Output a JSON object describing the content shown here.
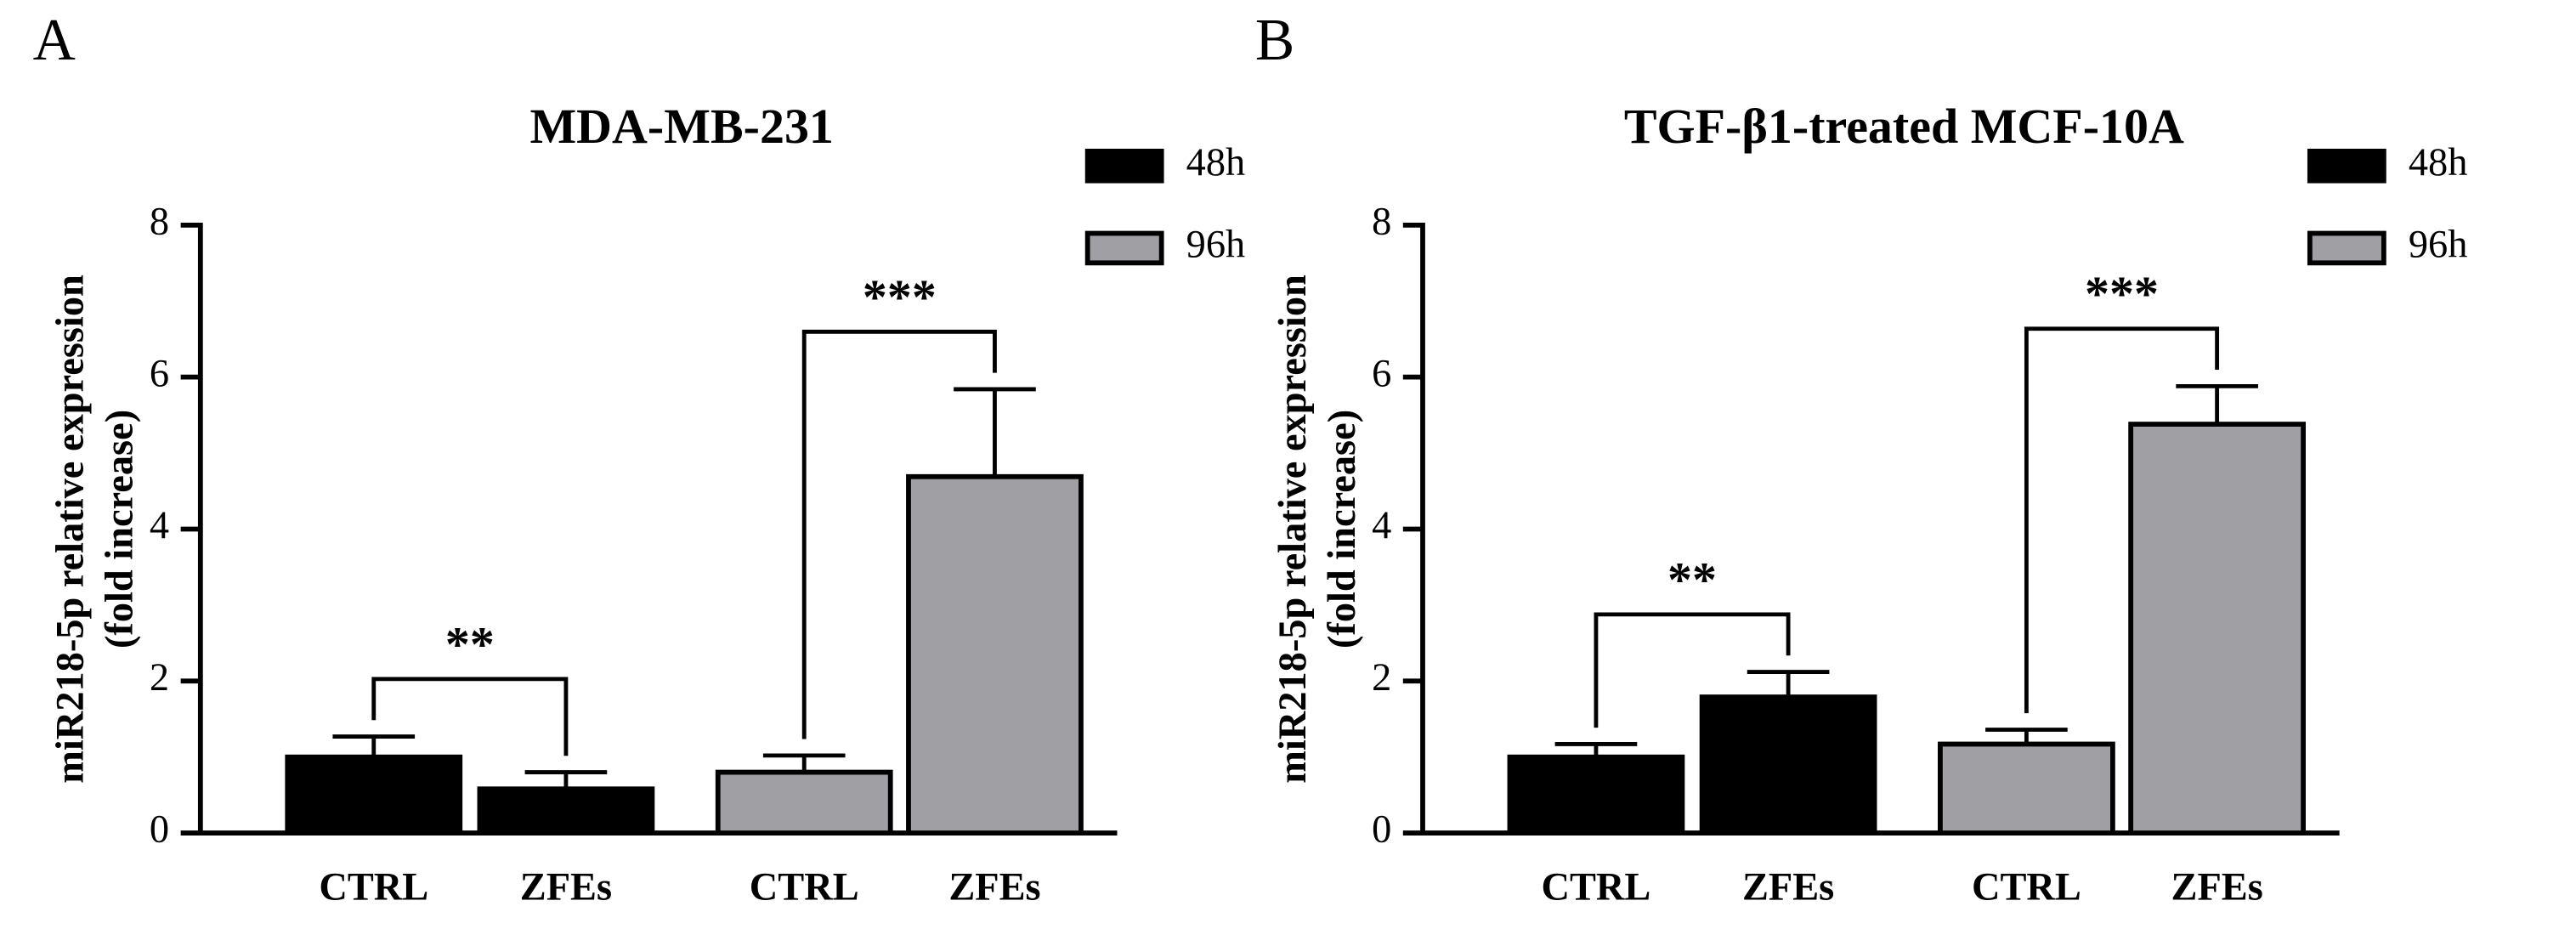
{
  "chart_data": [
    {
      "type": "bar",
      "panel": "A",
      "title": "MDA-MB-231",
      "ylabel": [
        "miR218-5p relative expression",
        "(fold increase)"
      ],
      "categories": [
        "CTRL",
        "ZFEs",
        "CTRL",
        "ZFEs"
      ],
      "series": [
        {
          "name": "48h",
          "color": "#000000",
          "values": [
            1.0,
            0.58,
            null,
            null
          ],
          "errors": [
            0.27,
            0.22,
            null,
            null
          ]
        },
        {
          "name": "96h",
          "color": "#a0a0a4",
          "values": [
            null,
            null,
            0.8,
            4.69
          ],
          "errors": [
            null,
            null,
            0.22,
            1.15
          ]
        }
      ],
      "annotations": [
        {
          "text": "**",
          "categories": [
            0,
            1
          ]
        },
        {
          "text": "***",
          "categories": [
            2,
            3
          ]
        }
      ],
      "ylim": [
        0,
        8
      ],
      "yticks": [
        0,
        2,
        4,
        6,
        8
      ]
    },
    {
      "type": "bar",
      "panel": "B",
      "title": "TGF-β1-treated MCF-10A",
      "ylabel": [
        "miR218-5p relative expression",
        "(fold increase)"
      ],
      "categories": [
        "CTRL",
        "ZFEs",
        "CTRL",
        "ZFEs"
      ],
      "series": [
        {
          "name": "48h",
          "color": "#000000",
          "values": [
            1.0,
            1.79,
            null,
            null
          ],
          "errors": [
            0.17,
            0.33,
            null,
            null
          ]
        },
        {
          "name": "96h",
          "color": "#a0a0a4",
          "values": [
            null,
            null,
            1.17,
            5.38
          ],
          "errors": [
            null,
            null,
            0.19,
            0.5
          ]
        }
      ],
      "annotations": [
        {
          "text": "**",
          "categories": [
            0,
            1
          ]
        },
        {
          "text": "***",
          "categories": [
            2,
            3
          ]
        }
      ],
      "ylim": [
        0,
        8
      ],
      "yticks": [
        0,
        2,
        4,
        6,
        8
      ]
    }
  ]
}
